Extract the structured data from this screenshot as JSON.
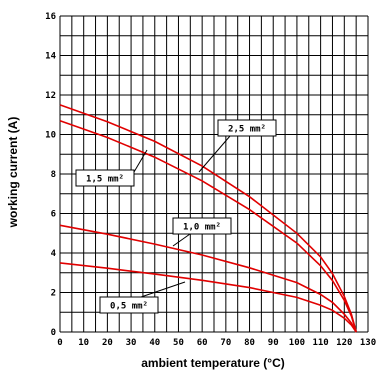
{
  "chart_data": {
    "type": "line",
    "xlabel": "ambient temperature (°C)",
    "ylabel": "working current (A)",
    "xlim": [
      0,
      130
    ],
    "ylim": [
      0,
      16
    ],
    "x_major_ticks": [
      0,
      10,
      20,
      30,
      40,
      50,
      60,
      70,
      80,
      90,
      100,
      110,
      120,
      130
    ],
    "y_major_ticks": [
      0,
      2,
      4,
      6,
      8,
      10,
      12,
      14,
      16
    ],
    "x_minor_step": 5,
    "y_minor_step": 1,
    "grid": true,
    "line_color": "#e10000",
    "series": [
      {
        "name": "0,5 mm²",
        "x": [
          0,
          20,
          40,
          60,
          80,
          100,
          110,
          115,
          120,
          123,
          125
        ],
        "y": [
          3.5,
          3.23,
          2.93,
          2.62,
          2.25,
          1.75,
          1.35,
          1.1,
          0.7,
          0.35,
          0
        ]
      },
      {
        "name": "1,0 mm²",
        "x": [
          0,
          20,
          40,
          60,
          80,
          100,
          110,
          115,
          120,
          123,
          125
        ],
        "y": [
          5.4,
          4.95,
          4.45,
          3.9,
          3.25,
          2.5,
          1.9,
          1.5,
          0.9,
          0.45,
          0
        ]
      },
      {
        "name": "1,5 mm²",
        "x": [
          0,
          20,
          40,
          60,
          80,
          100,
          110,
          115,
          120,
          123,
          125
        ],
        "y": [
          10.7,
          9.85,
          8.85,
          7.65,
          6.2,
          4.5,
          3.35,
          2.6,
          1.6,
          0.8,
          0
        ]
      },
      {
        "name": "2,5 mm²",
        "x": [
          0,
          20,
          40,
          60,
          80,
          100,
          110,
          115,
          120,
          123,
          125
        ],
        "y": [
          11.5,
          10.65,
          9.65,
          8.4,
          6.85,
          5.0,
          3.8,
          2.95,
          1.8,
          0.9,
          0
        ]
      }
    ]
  }
}
